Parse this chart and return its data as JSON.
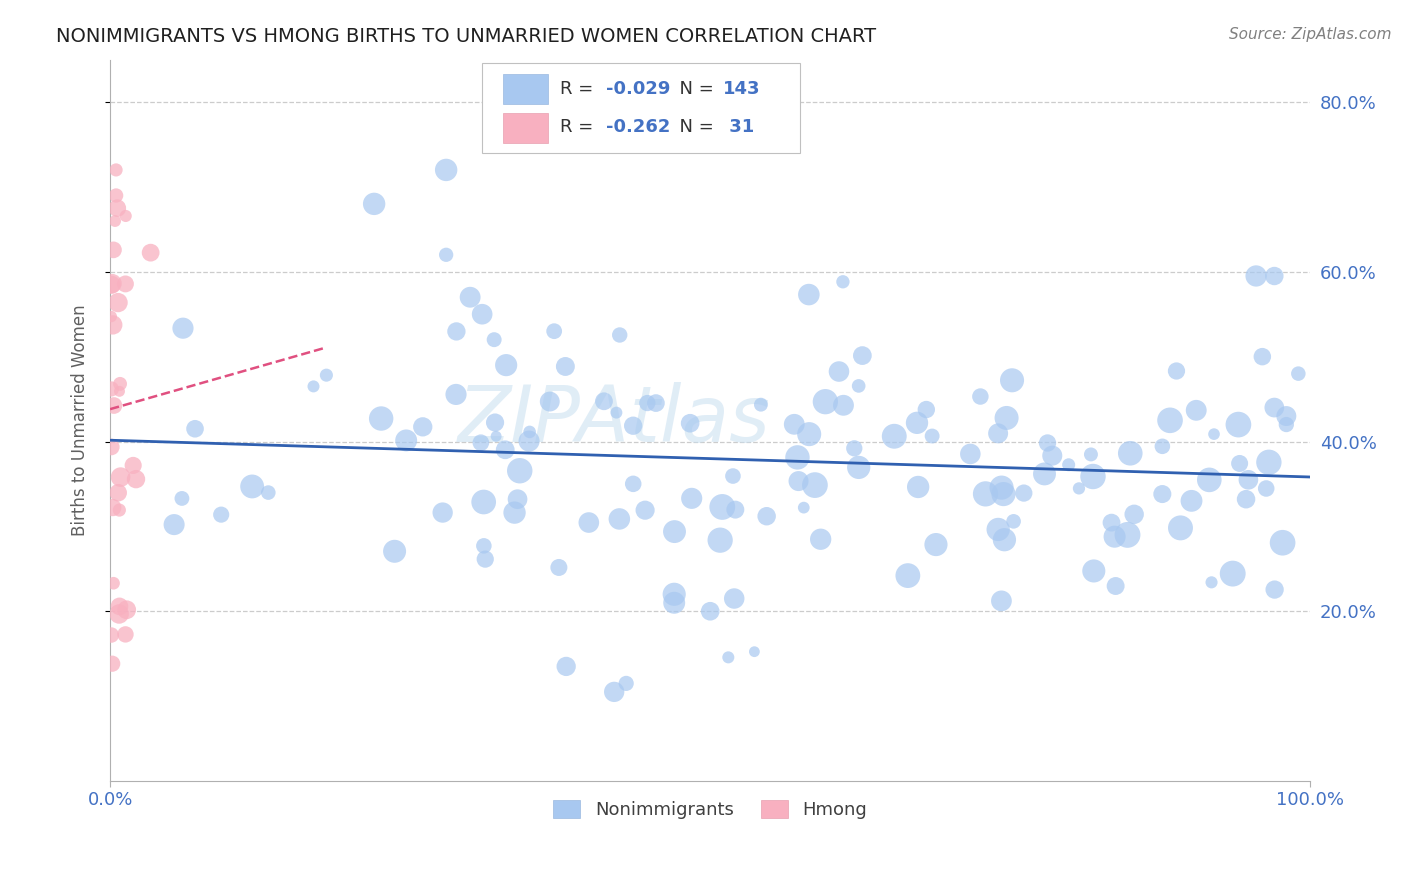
{
  "title": "NONIMMIGRANTS VS HMONG BIRTHS TO UNMARRIED WOMEN CORRELATION CHART",
  "source_text": "Source: ZipAtlas.com",
  "ylabel": "Births to Unmarried Women",
  "watermark": "ZIPAtlas",
  "xmin": 0.0,
  "xmax": 1.0,
  "ymin": 0.0,
  "ymax": 0.85,
  "nonimmigrant_color": "#a8c8f0",
  "nonimmigrant_line_color": "#3060b0",
  "hmong_color": "#f8b0c0",
  "hmong_line_color": "#e05080",
  "background_color": "#ffffff",
  "grid_color": "#cccccc",
  "title_color": "#202020",
  "axis_label_color": "#606060",
  "tick_label_color": "#4472c4",
  "legend_text_color": "#4472c4",
  "legend_label_color": "#333333",
  "source_color": "#808080",
  "nonimmigrant_R": -0.029,
  "nonimmigrant_N": 143,
  "hmong_R": -0.262,
  "hmong_N": 31,
  "seed": 12345
}
